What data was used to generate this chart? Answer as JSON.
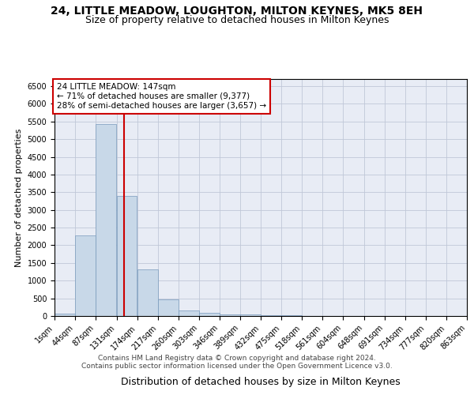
{
  "title": "24, LITTLE MEADOW, LOUGHTON, MILTON KEYNES, MK5 8EH",
  "subtitle": "Size of property relative to detached houses in Milton Keynes",
  "xlabel": "Distribution of detached houses by size in Milton Keynes",
  "ylabel": "Number of detached properties",
  "footer_line1": "Contains HM Land Registry data © Crown copyright and database right 2024.",
  "footer_line2": "Contains public sector information licensed under the Open Government Licence v3.0.",
  "annotation_line1": "24 LITTLE MEADOW: 147sqm",
  "annotation_line2": "← 71% of detached houses are smaller (9,377)",
  "annotation_line3": "28% of semi-detached houses are larger (3,657) →",
  "bin_edges": [
    1,
    44,
    87,
    131,
    174,
    217,
    260,
    303,
    346,
    389,
    432,
    475,
    518,
    561,
    604,
    648,
    691,
    734,
    777,
    820,
    863
  ],
  "bar_heights": [
    75,
    2280,
    5430,
    3390,
    1310,
    480,
    160,
    85,
    55,
    40,
    30,
    20,
    0,
    0,
    0,
    0,
    0,
    0,
    0,
    0
  ],
  "bar_color": "#c8d8e8",
  "bar_edge_color": "#7799bb",
  "vline_color": "#cc0000",
  "vline_x": 147,
  "ylim": [
    0,
    6700
  ],
  "yticks": [
    0,
    500,
    1000,
    1500,
    2000,
    2500,
    3000,
    3500,
    4000,
    4500,
    5000,
    5500,
    6000,
    6500
  ],
  "grid_color": "#c0c8d8",
  "background_color": "#e8ecf5",
  "title_fontsize": 10,
  "subtitle_fontsize": 9,
  "xlabel_fontsize": 9,
  "ylabel_fontsize": 8,
  "tick_fontsize": 7,
  "annotation_fontsize": 7.5,
  "footer_fontsize": 6.5
}
